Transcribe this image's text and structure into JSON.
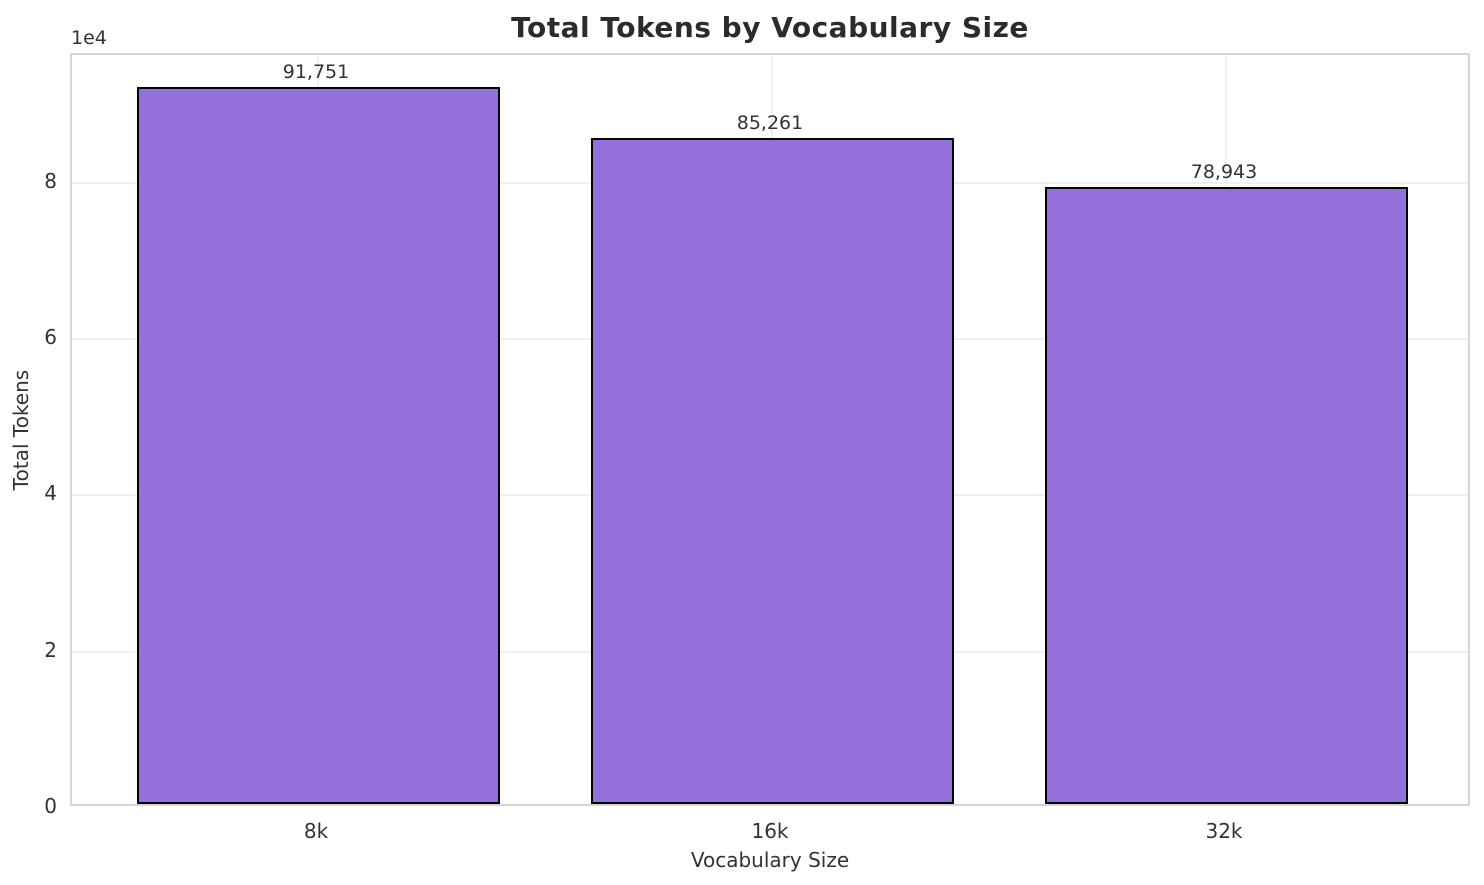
{
  "chart_data": {
    "type": "bar",
    "title": "Total Tokens by Vocabulary Size",
    "xlabel": "Vocabulary Size",
    "ylabel": "Total Tokens",
    "y_offset_text": "1e4",
    "categories": [
      "8k",
      "16k",
      "32k"
    ],
    "values": [
      91751,
      85261,
      78943
    ],
    "value_labels": [
      "91,751",
      "85,261",
      "78,943"
    ],
    "ylim": [
      0,
      96339
    ],
    "yticks": [
      {
        "value": 0,
        "label": "0"
      },
      {
        "value": 20000,
        "label": "2"
      },
      {
        "value": 40000,
        "label": "4"
      },
      {
        "value": 60000,
        "label": "6"
      },
      {
        "value": 80000,
        "label": "8"
      }
    ],
    "grid": true,
    "legend_position": "none",
    "colors": {
      "bar_fill": "#9370DB",
      "bar_edge": "#000000",
      "grid": "#efefef",
      "spine": "#d5d5d5",
      "title_text": "#2b2b2b",
      "tick_text": "#333333"
    }
  }
}
